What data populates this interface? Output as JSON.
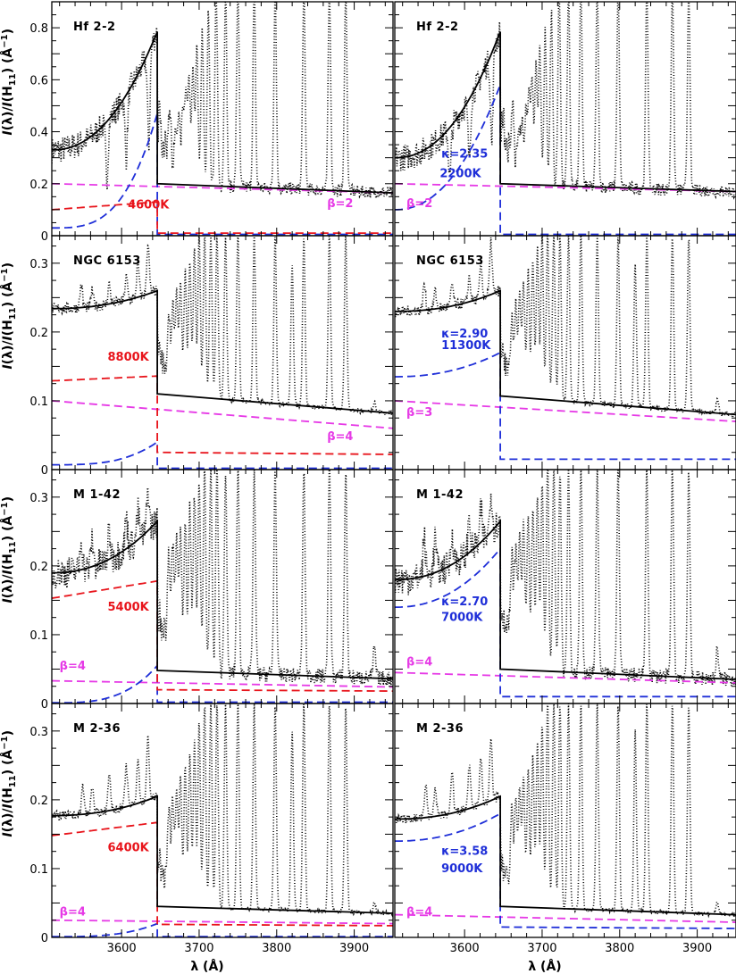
{
  "figure": {
    "xlabel": "λ (Å)",
    "ylabel": "I(λ)/I(H11) (Å−1)",
    "colors": {
      "observed": "#000000",
      "total": "#000000",
      "maxwell_or_red": "#e8141b",
      "kappa_blue": "#1f2fd8",
      "he_magenta": "#e63ae6"
    }
  },
  "chart_data": [
    {
      "type": "line",
      "row": 0,
      "col": 0,
      "title": "Hf 2-2",
      "xlim": [
        3510,
        3950
      ],
      "ylim": [
        0,
        0.9
      ],
      "xticks": [
        3600,
        3700,
        3800,
        3900
      ],
      "yticks": [
        0,
        0.2,
        0.4,
        0.6,
        0.8
      ],
      "ytick_labels": [
        "0",
        "0.2",
        "0.4",
        "0.6",
        "0.8"
      ],
      "temp_label": "4600K",
      "temp_color": "red",
      "beta_label": "β=2",
      "kappa_label": "",
      "total_left": [
        0.33,
        0.785
      ],
      "total_right": [
        0.2,
        0.165
      ],
      "comp_left": [
        0.1,
        0.13
      ],
      "comp_right": [
        0.01,
        0.01
      ],
      "blue_left": [
        0.03,
        0.47
      ],
      "blue_right": [
        0.005,
        0.005
      ],
      "he_line": [
        0.2,
        0.165
      ],
      "cont_noise": 0.04,
      "lines": [
        [
          3581,
          0.22
        ],
        [
          3606,
          0.3
        ],
        [
          3635,
          0.35
        ],
        [
          3662,
          0.4
        ],
        [
          3670,
          0.32
        ],
        [
          3674,
          0.38
        ],
        [
          3679,
          0.44
        ],
        [
          3683,
          0.5
        ],
        [
          3687,
          0.56
        ],
        [
          3692,
          0.62
        ],
        [
          3697,
          0.7
        ],
        [
          3704,
          0.78
        ],
        [
          3712,
          0.86
        ],
        [
          3722,
          0.95
        ],
        [
          3734,
          0.95
        ],
        [
          3750,
          0.95
        ],
        [
          3771,
          0.95
        ],
        [
          3798,
          0.95
        ],
        [
          3835,
          0.95
        ],
        [
          3868,
          0.95
        ],
        [
          3889,
          0.95
        ]
      ],
      "ann": {
        "temp": [
          3608,
          0.105
        ],
        "beta": [
          3865,
          0.11
        ],
        "kappa": null
      }
    },
    {
      "type": "line",
      "row": 0,
      "col": 1,
      "title": "Hf 2-2",
      "xlim": [
        3510,
        3950
      ],
      "ylim": [
        0,
        0.9
      ],
      "xticks": [
        3600,
        3700,
        3800,
        3900
      ],
      "yticks": [
        0,
        0.2,
        0.4,
        0.6,
        0.8
      ],
      "ytick_labels": [
        "0",
        "0.2",
        "0.4",
        "0.6",
        "0.8"
      ],
      "temp_label": "2200K",
      "temp_color": "blue",
      "beta_label": "β=2",
      "kappa_label": "κ=2.35",
      "total_left": [
        0.3,
        0.785
      ],
      "total_right": [
        0.2,
        0.17
      ],
      "comp_left": null,
      "comp_right": null,
      "blue_left": [
        0.1,
        0.58
      ],
      "blue_right": [
        0.005,
        0.005
      ],
      "he_line": [
        0.2,
        0.17
      ],
      "cont_noise": 0.04,
      "lines": [
        [
          3581,
          0.22
        ],
        [
          3606,
          0.3
        ],
        [
          3635,
          0.35
        ],
        [
          3662,
          0.4
        ],
        [
          3670,
          0.32
        ],
        [
          3674,
          0.38
        ],
        [
          3679,
          0.44
        ],
        [
          3683,
          0.5
        ],
        [
          3687,
          0.56
        ],
        [
          3692,
          0.62
        ],
        [
          3697,
          0.7
        ],
        [
          3704,
          0.78
        ],
        [
          3712,
          0.86
        ],
        [
          3722,
          0.95
        ],
        [
          3734,
          0.95
        ],
        [
          3750,
          0.95
        ],
        [
          3771,
          0.95
        ],
        [
          3798,
          0.95
        ],
        [
          3835,
          0.95
        ],
        [
          3868,
          0.95
        ],
        [
          3889,
          0.95
        ]
      ],
      "ann": {
        "temp": [
          3568,
          0.225
        ],
        "beta": [
          3525,
          0.11
        ],
        "kappa": [
          3570,
          0.3
        ]
      }
    },
    {
      "type": "line",
      "row": 1,
      "col": 0,
      "title": "NGC 6153",
      "xlim": [
        3510,
        3950
      ],
      "ylim": [
        0,
        0.34
      ],
      "xticks": [
        3600,
        3700,
        3800,
        3900
      ],
      "yticks": [
        0,
        0.1,
        0.2,
        0.3
      ],
      "ytick_labels": [
        "0",
        "0.1",
        "0.2",
        "0.3"
      ],
      "temp_label": "8800K",
      "temp_color": "red",
      "beta_label": "β=4",
      "kappa_label": "",
      "total_left": [
        0.234,
        0.26
      ],
      "total_right": [
        0.11,
        0.082
      ],
      "comp_left": [
        0.129,
        0.136
      ],
      "comp_right": [
        0.025,
        0.022
      ],
      "blue_left": [
        0.007,
        0.04
      ],
      "blue_right": [
        0.002,
        0.002
      ],
      "he_line": [
        0.1,
        0.06
      ],
      "cont_noise": 0.006,
      "lines": [
        [
          3548,
          0.27
        ],
        [
          3562,
          0.26
        ],
        [
          3584,
          0.27
        ],
        [
          3606,
          0.28
        ],
        [
          3621,
          0.3
        ],
        [
          3634,
          0.33
        ],
        [
          3661,
          0.19
        ],
        [
          3666,
          0.22
        ],
        [
          3671,
          0.24
        ],
        [
          3676,
          0.26
        ],
        [
          3682,
          0.28
        ],
        [
          3688,
          0.3
        ],
        [
          3694,
          0.32
        ],
        [
          3700,
          0.34
        ],
        [
          3707,
          0.34
        ],
        [
          3715,
          0.34
        ],
        [
          3723,
          0.34
        ],
        [
          3734,
          0.34
        ],
        [
          3750,
          0.34
        ],
        [
          3771,
          0.34
        ],
        [
          3798,
          0.34
        ],
        [
          3820,
          0.3
        ],
        [
          3835,
          0.34
        ],
        [
          3868,
          0.34
        ],
        [
          3889,
          0.34
        ],
        [
          3926,
          0.1
        ]
      ],
      "ann": {
        "temp": [
          3582,
          0.158
        ],
        "beta": [
          3865,
          0.043
        ],
        "kappa": null
      }
    },
    {
      "type": "line",
      "row": 1,
      "col": 1,
      "title": "NGC 6153",
      "xlim": [
        3510,
        3950
      ],
      "ylim": [
        0,
        0.34
      ],
      "xticks": [
        3600,
        3700,
        3800,
        3900
      ],
      "yticks": [
        0,
        0.1,
        0.2,
        0.3
      ],
      "ytick_labels": [
        "0",
        "0.1",
        "0.2",
        "0.3"
      ],
      "temp_label": "11300K",
      "temp_color": "blue",
      "beta_label": "β=3",
      "kappa_label": "κ=2.90",
      "total_left": [
        0.23,
        0.26
      ],
      "total_right": [
        0.107,
        0.08
      ],
      "comp_left": null,
      "comp_right": null,
      "blue_left": [
        0.135,
        0.17
      ],
      "blue_right": [
        0.015,
        0.015
      ],
      "he_line": [
        0.1,
        0.07
      ],
      "cont_noise": 0.006,
      "lines": [
        [
          3548,
          0.27
        ],
        [
          3562,
          0.26
        ],
        [
          3584,
          0.27
        ],
        [
          3606,
          0.28
        ],
        [
          3621,
          0.3
        ],
        [
          3634,
          0.33
        ],
        [
          3661,
          0.19
        ],
        [
          3666,
          0.22
        ],
        [
          3671,
          0.24
        ],
        [
          3676,
          0.26
        ],
        [
          3682,
          0.28
        ],
        [
          3688,
          0.3
        ],
        [
          3694,
          0.32
        ],
        [
          3700,
          0.34
        ],
        [
          3707,
          0.34
        ],
        [
          3715,
          0.34
        ],
        [
          3723,
          0.34
        ],
        [
          3734,
          0.34
        ],
        [
          3750,
          0.34
        ],
        [
          3771,
          0.34
        ],
        [
          3798,
          0.34
        ],
        [
          3820,
          0.3
        ],
        [
          3835,
          0.34
        ],
        [
          3868,
          0.34
        ],
        [
          3889,
          0.34
        ],
        [
          3926,
          0.1
        ]
      ],
      "ann": {
        "temp": [
          3570,
          0.175
        ],
        "beta": [
          3525,
          0.078
        ],
        "kappa": [
          3570,
          0.192
        ]
      }
    },
    {
      "type": "line",
      "row": 2,
      "col": 0,
      "title": "M 1-42",
      "xlim": [
        3510,
        3950
      ],
      "ylim": [
        0,
        0.34
      ],
      "xticks": [
        3600,
        3700,
        3800,
        3900
      ],
      "yticks": [
        0,
        0.1,
        0.2,
        0.3
      ],
      "ytick_labels": [
        "0",
        "0.1",
        "0.2",
        "0.3"
      ],
      "temp_label": "5400K",
      "temp_color": "red",
      "beta_label": "β=4",
      "kappa_label": "",
      "total_left": [
        0.19,
        0.265
      ],
      "total_right": [
        0.048,
        0.036
      ],
      "comp_left": [
        0.153,
        0.178
      ],
      "comp_right": [
        0.02,
        0.018
      ],
      "blue_left": [
        0.001,
        0.055
      ],
      "blue_right": [
        0.002,
        0.002
      ],
      "he_line": [
        0.033,
        0.024
      ],
      "cont_noise": 0.018,
      "lines": [
        [
          3548,
          0.24
        ],
        [
          3562,
          0.24
        ],
        [
          3584,
          0.25
        ],
        [
          3606,
          0.27
        ],
        [
          3621,
          0.28
        ],
        [
          3634,
          0.31
        ],
        [
          3661,
          0.18
        ],
        [
          3666,
          0.2
        ],
        [
          3671,
          0.22
        ],
        [
          3676,
          0.24
        ],
        [
          3682,
          0.26
        ],
        [
          3688,
          0.28
        ],
        [
          3694,
          0.3
        ],
        [
          3700,
          0.32
        ],
        [
          3707,
          0.34
        ],
        [
          3715,
          0.34
        ],
        [
          3723,
          0.34
        ],
        [
          3734,
          0.34
        ],
        [
          3750,
          0.34
        ],
        [
          3771,
          0.34
        ],
        [
          3798,
          0.34
        ],
        [
          3835,
          0.34
        ],
        [
          3868,
          0.34
        ],
        [
          3889,
          0.34
        ],
        [
          3926,
          0.08
        ]
      ],
      "ann": {
        "temp": [
          3582,
          0.135
        ],
        "beta": [
          3520,
          0.049
        ],
        "kappa": null
      }
    },
    {
      "type": "line",
      "row": 2,
      "col": 1,
      "title": "M 1-42",
      "xlim": [
        3510,
        3950
      ],
      "ylim": [
        0,
        0.34
      ],
      "xticks": [
        3600,
        3700,
        3800,
        3900
      ],
      "yticks": [
        0,
        0.1,
        0.2,
        0.3
      ],
      "ytick_labels": [
        "0",
        "0.1",
        "0.2",
        "0.3"
      ],
      "temp_label": "7000K",
      "temp_color": "blue",
      "beta_label": "β=4",
      "kappa_label": "κ=2.70",
      "total_left": [
        0.18,
        0.265
      ],
      "total_right": [
        0.05,
        0.035
      ],
      "comp_left": null,
      "comp_right": null,
      "blue_left": [
        0.14,
        0.225
      ],
      "blue_right": [
        0.01,
        0.01
      ],
      "he_line": [
        0.045,
        0.03
      ],
      "cont_noise": 0.018,
      "lines": [
        [
          3548,
          0.24
        ],
        [
          3562,
          0.24
        ],
        [
          3584,
          0.25
        ],
        [
          3606,
          0.27
        ],
        [
          3621,
          0.28
        ],
        [
          3634,
          0.31
        ],
        [
          3661,
          0.18
        ],
        [
          3666,
          0.2
        ],
        [
          3671,
          0.22
        ],
        [
          3676,
          0.24
        ],
        [
          3682,
          0.26
        ],
        [
          3688,
          0.28
        ],
        [
          3694,
          0.3
        ],
        [
          3700,
          0.32
        ],
        [
          3707,
          0.34
        ],
        [
          3715,
          0.34
        ],
        [
          3723,
          0.34
        ],
        [
          3734,
          0.34
        ],
        [
          3750,
          0.34
        ],
        [
          3771,
          0.34
        ],
        [
          3798,
          0.34
        ],
        [
          3835,
          0.34
        ],
        [
          3868,
          0.34
        ],
        [
          3889,
          0.34
        ],
        [
          3926,
          0.08
        ]
      ],
      "ann": {
        "temp": [
          3570,
          0.12
        ],
        "beta": [
          3525,
          0.055
        ],
        "kappa": [
          3570,
          0.143
        ]
      }
    },
    {
      "type": "line",
      "row": 3,
      "col": 0,
      "title": "M 2-36",
      "xlim": [
        3510,
        3950
      ],
      "ylim": [
        0,
        0.34
      ],
      "xticks": [
        3600,
        3700,
        3800,
        3900
      ],
      "yticks": [
        0,
        0.1,
        0.2,
        0.3
      ],
      "ytick_labels": [
        "0",
        "0.1",
        "0.2",
        "0.3"
      ],
      "temp_label": "6400K",
      "temp_color": "red",
      "beta_label": "β=4",
      "kappa_label": "",
      "total_left": [
        0.177,
        0.205
      ],
      "total_right": [
        0.045,
        0.035
      ],
      "comp_left": [
        0.148,
        0.167
      ],
      "comp_right": [
        0.019,
        0.017
      ],
      "blue_left": [
        0.001,
        0.02
      ],
      "blue_right": [
        0.001,
        0.001
      ],
      "he_line": [
        0.025,
        0.02
      ],
      "cont_noise": 0.005,
      "lines": [
        [
          3550,
          0.22
        ],
        [
          3562,
          0.22
        ],
        [
          3584,
          0.24
        ],
        [
          3606,
          0.25
        ],
        [
          3621,
          0.26
        ],
        [
          3634,
          0.29
        ],
        [
          3661,
          0.16
        ],
        [
          3666,
          0.18
        ],
        [
          3671,
          0.2
        ],
        [
          3676,
          0.22
        ],
        [
          3682,
          0.24
        ],
        [
          3688,
          0.26
        ],
        [
          3694,
          0.28
        ],
        [
          3700,
          0.31
        ],
        [
          3707,
          0.34
        ],
        [
          3715,
          0.34
        ],
        [
          3723,
          0.34
        ],
        [
          3734,
          0.34
        ],
        [
          3750,
          0.34
        ],
        [
          3771,
          0.34
        ],
        [
          3798,
          0.34
        ],
        [
          3820,
          0.3
        ],
        [
          3835,
          0.34
        ],
        [
          3868,
          0.34
        ],
        [
          3889,
          0.34
        ],
        [
          3926,
          0.05
        ]
      ],
      "ann": {
        "temp": [
          3582,
          0.125
        ],
        "beta": [
          3520,
          0.032
        ],
        "kappa": null
      }
    },
    {
      "type": "line",
      "row": 3,
      "col": 1,
      "title": "M 2-36",
      "xlim": [
        3510,
        3950
      ],
      "ylim": [
        0,
        0.34
      ],
      "xticks": [
        3600,
        3700,
        3800,
        3900
      ],
      "yticks": [
        0,
        0.1,
        0.2,
        0.3
      ],
      "ytick_labels": [
        "0",
        "0.1",
        "0.2",
        "0.3"
      ],
      "temp_label": "9000K",
      "temp_color": "blue",
      "beta_label": "β=4",
      "kappa_label": "κ=3.58",
      "total_left": [
        0.172,
        0.205
      ],
      "total_right": [
        0.045,
        0.033
      ],
      "comp_left": null,
      "comp_right": null,
      "blue_left": [
        0.14,
        0.18
      ],
      "blue_right": [
        0.015,
        0.013
      ],
      "he_line": [
        0.033,
        0.022
      ],
      "cont_noise": 0.005,
      "lines": [
        [
          3550,
          0.22
        ],
        [
          3562,
          0.22
        ],
        [
          3584,
          0.24
        ],
        [
          3606,
          0.25
        ],
        [
          3621,
          0.26
        ],
        [
          3634,
          0.29
        ],
        [
          3661,
          0.16
        ],
        [
          3666,
          0.18
        ],
        [
          3671,
          0.2
        ],
        [
          3676,
          0.22
        ],
        [
          3682,
          0.24
        ],
        [
          3688,
          0.26
        ],
        [
          3694,
          0.28
        ],
        [
          3700,
          0.31
        ],
        [
          3707,
          0.34
        ],
        [
          3715,
          0.34
        ],
        [
          3723,
          0.34
        ],
        [
          3734,
          0.34
        ],
        [
          3750,
          0.34
        ],
        [
          3771,
          0.34
        ],
        [
          3798,
          0.34
        ],
        [
          3820,
          0.3
        ],
        [
          3835,
          0.34
        ],
        [
          3868,
          0.34
        ],
        [
          3889,
          0.34
        ],
        [
          3926,
          0.05
        ]
      ],
      "ann": {
        "temp": [
          3570,
          0.095
        ],
        "beta": [
          3525,
          0.032
        ],
        "kappa": [
          3570,
          0.12
        ]
      }
    }
  ]
}
